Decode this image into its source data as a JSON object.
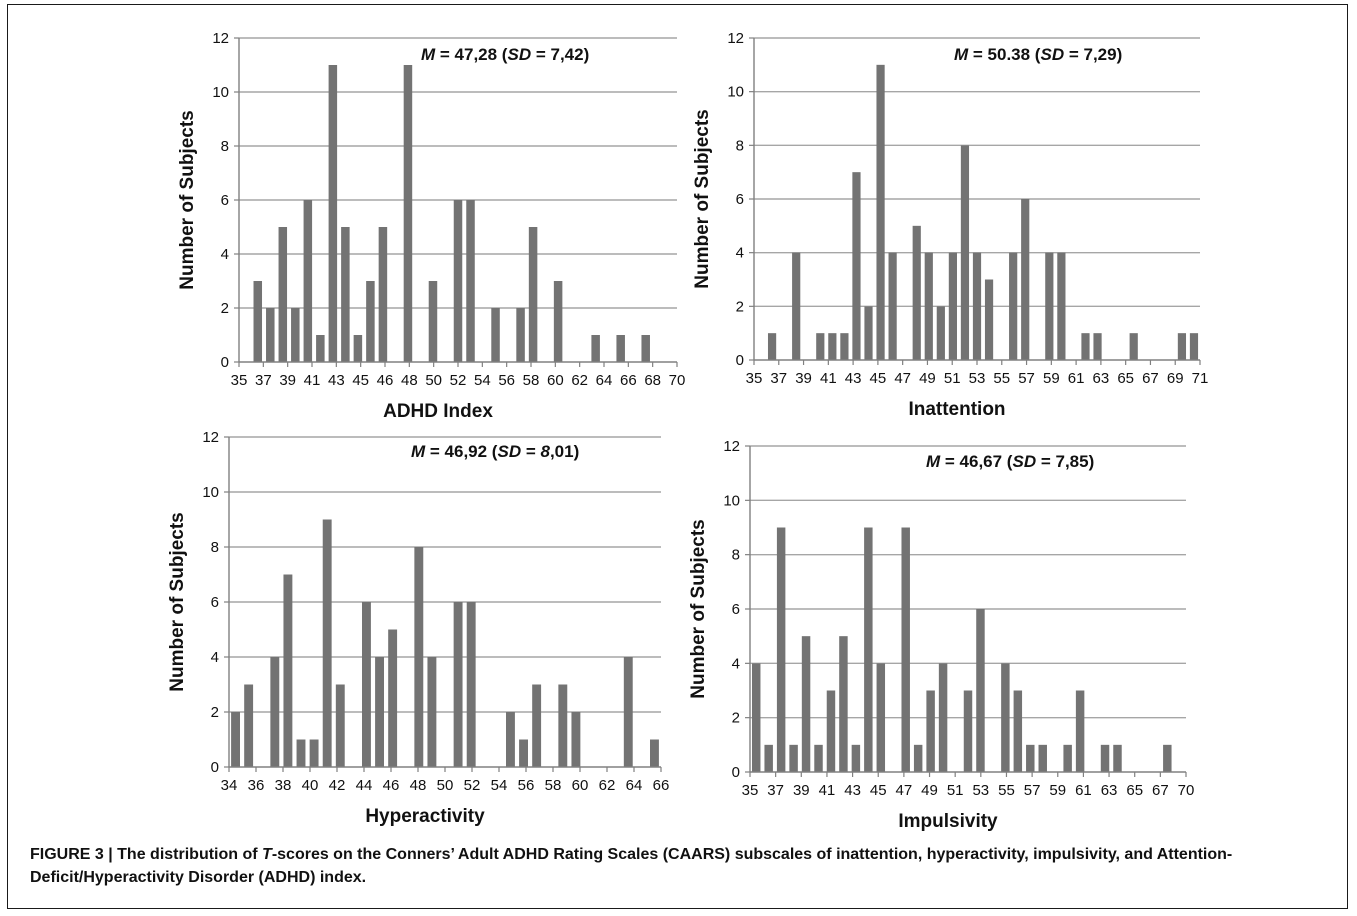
{
  "caption": {
    "lead": "FIGURE 3 | The distribution of ",
    "em": "T",
    "rest": "-scores on the Conners’ Adult ADHD Rating Scales (CAARS) subscales of inattention, hyperactivity, impulsivity, and Attention-Deficit/Hyperactivity Disorder (ADHD) index."
  },
  "colors": {
    "bar": "#737373",
    "grid": "#a6a6a6",
    "axis": "#808080"
  },
  "chart_data": [
    {
      "id": "adhd",
      "type": "bar",
      "xlabel": "ADHD Index",
      "ylabel": "Number of Subjects",
      "annotation": {
        "m_label": "M",
        "m_value": " = 47,28 (",
        "sd_label": "SD",
        "sd_value": " = 7,42)"
      },
      "xlim": [
        35,
        70
      ],
      "ylim": [
        0,
        12
      ],
      "yticks": [
        0,
        2,
        4,
        6,
        8,
        10,
        12
      ],
      "xticks": [
        35,
        37,
        39,
        41,
        43,
        45,
        46,
        48,
        50,
        52,
        54,
        56,
        58,
        60,
        62,
        64,
        66,
        68,
        70
      ],
      "x": [
        36,
        37,
        38,
        39,
        40,
        41,
        42,
        43,
        44,
        45,
        46,
        48,
        50,
        52,
        53,
        55,
        57,
        58,
        60,
        63,
        65,
        67
      ],
      "values": [
        3,
        2,
        5,
        2,
        6,
        1,
        11,
        5,
        1,
        3,
        5,
        11,
        3,
        6,
        6,
        2,
        2,
        5,
        3,
        1,
        1,
        1
      ]
    },
    {
      "id": "inattention",
      "type": "bar",
      "xlabel": "Inattention",
      "ylabel": "Number of Subjects",
      "annotation": {
        "m_label": "M",
        "m_value": " = 50.38 (",
        "sd_label": "SD",
        "sd_value": " = 7,29)"
      },
      "xlim": [
        35,
        72
      ],
      "ylim": [
        0,
        12
      ],
      "yticks": [
        0,
        2,
        4,
        6,
        8,
        10,
        12
      ],
      "xticks": [
        35,
        37,
        39,
        41,
        43,
        45,
        47,
        49,
        51,
        53,
        55,
        57,
        59,
        61,
        63,
        65,
        67,
        69,
        71
      ],
      "x": [
        36,
        38,
        40,
        41,
        42,
        43,
        44,
        45,
        46,
        48,
        49,
        50,
        51,
        52,
        53,
        54,
        56,
        57,
        59,
        60,
        62,
        63,
        66,
        70,
        71
      ],
      "values": [
        1,
        4,
        1,
        1,
        1,
        7,
        2,
        11,
        4,
        5,
        4,
        2,
        4,
        8,
        4,
        3,
        4,
        6,
        4,
        4,
        1,
        1,
        1,
        1,
        1
      ]
    },
    {
      "id": "hyperactivity",
      "type": "bar",
      "xlabel": "Hyperactivity",
      "ylabel": "Number of Subjects",
      "annotation": {
        "m_label": "M",
        "m_value": " = 46,92 (",
        "sd_label": "SD",
        "sd_value": " = ",
        "sd_value_em": "8",
        "sd_value_tail": ",01)"
      },
      "xlim": [
        34,
        67
      ],
      "ylim": [
        0,
        12
      ],
      "yticks": [
        0,
        2,
        4,
        6,
        8,
        10,
        12
      ],
      "xticks": [
        34,
        36,
        38,
        40,
        42,
        44,
        46,
        48,
        50,
        52,
        54,
        56,
        58,
        60,
        62,
        64,
        66
      ],
      "x": [
        34,
        35,
        37,
        38,
        39,
        40,
        41,
        42,
        44,
        45,
        46,
        48,
        49,
        51,
        52,
        55,
        56,
        57,
        59,
        60,
        64,
        66
      ],
      "values": [
        2,
        3,
        4,
        7,
        1,
        1,
        9,
        3,
        6,
        4,
        5,
        8,
        4,
        6,
        6,
        2,
        1,
        3,
        3,
        2,
        4,
        1
      ]
    },
    {
      "id": "impulsivity",
      "type": "bar",
      "xlabel": "Impulsivity",
      "ylabel": "Number of Subjects",
      "annotation": {
        "m_label": "M",
        "m_value": " = 46,67 (",
        "sd_label": "SD",
        "sd_value": " = 7,85)"
      },
      "xlim": [
        35,
        70
      ],
      "ylim": [
        0,
        12
      ],
      "yticks": [
        0,
        2,
        4,
        6,
        8,
        10,
        12
      ],
      "xticks": [
        35,
        37,
        39,
        41,
        43,
        45,
        47,
        49,
        51,
        53,
        55,
        57,
        59,
        61,
        63,
        65,
        67,
        70
      ],
      "x": [
        35,
        36,
        37,
        38,
        39,
        40,
        41,
        42,
        43,
        44,
        45,
        47,
        48,
        49,
        50,
        52,
        53,
        55,
        56,
        57,
        58,
        60,
        61,
        63,
        64,
        68
      ],
      "values": [
        4,
        1,
        9,
        1,
        5,
        1,
        3,
        5,
        1,
        9,
        4,
        9,
        1,
        3,
        4,
        3,
        6,
        4,
        3,
        1,
        1,
        1,
        3,
        1,
        1,
        1
      ]
    }
  ]
}
